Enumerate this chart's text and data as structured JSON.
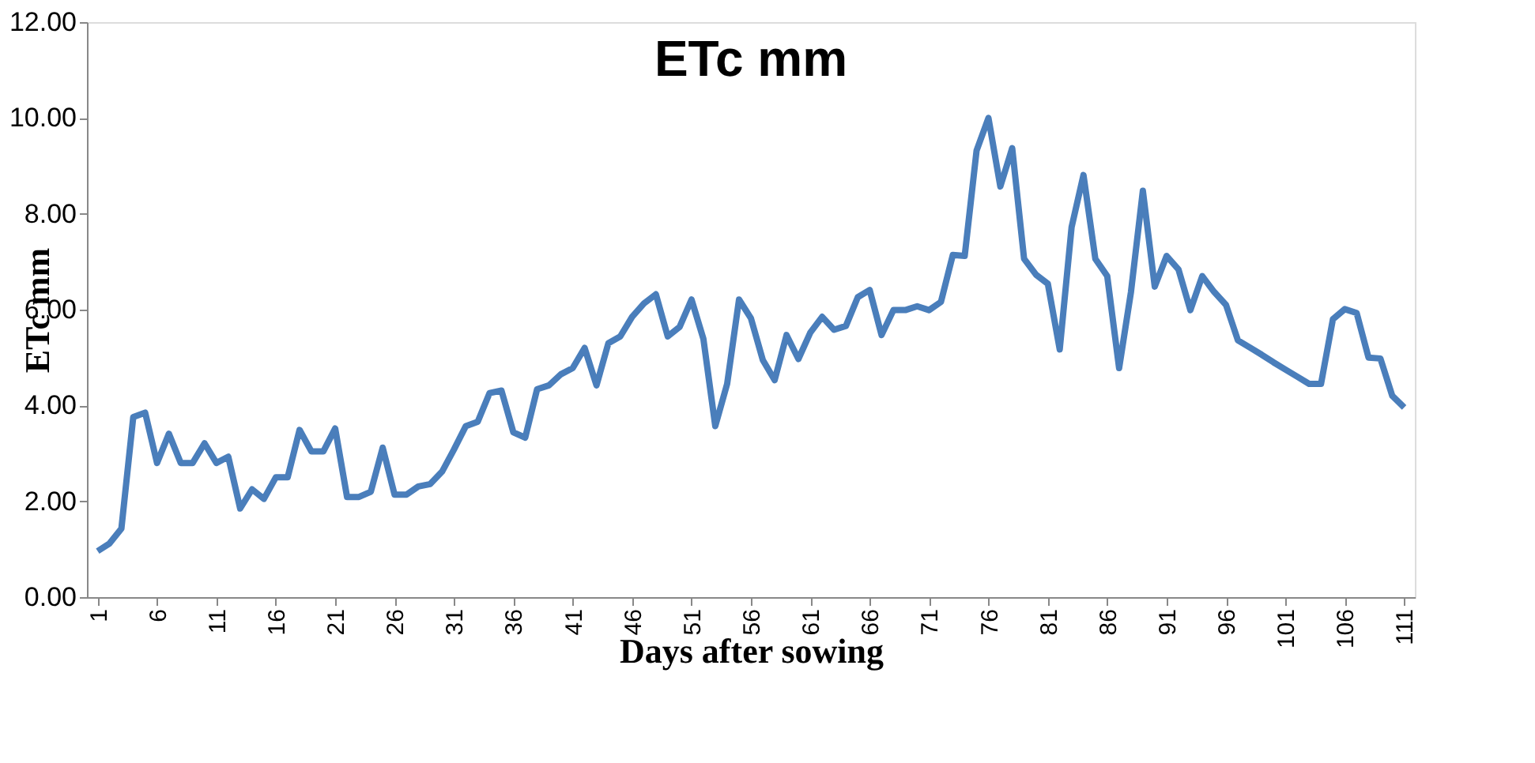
{
  "chart_data": {
    "type": "line",
    "title": "ETc mm",
    "xlabel": "Days after sowing",
    "ylabel": "ETc mm",
    "x": [
      1,
      2,
      3,
      4,
      5,
      6,
      7,
      8,
      9,
      10,
      11,
      12,
      13,
      14,
      15,
      16,
      17,
      18,
      19,
      20,
      21,
      22,
      23,
      24,
      25,
      26,
      27,
      28,
      29,
      30,
      31,
      32,
      33,
      34,
      35,
      36,
      37,
      38,
      39,
      40,
      41,
      42,
      43,
      44,
      45,
      46,
      47,
      48,
      49,
      50,
      51,
      52,
      53,
      54,
      55,
      56,
      57,
      58,
      59,
      60,
      61,
      62,
      63,
      64,
      65,
      66,
      67,
      68,
      69,
      70,
      71,
      72,
      73,
      74,
      75,
      76,
      77,
      78,
      79,
      80,
      81,
      82,
      83,
      84,
      85,
      86,
      87,
      88,
      89,
      90,
      91,
      92,
      93,
      94,
      95,
      96,
      97,
      98,
      99,
      100,
      101,
      102,
      103,
      104,
      105,
      106,
      107,
      108,
      109,
      110,
      111
    ],
    "series": [
      {
        "color": "#4a7ebb",
        "values": [
          0.96,
          1.12,
          1.43,
          3.76,
          3.85,
          2.8,
          3.41,
          2.8,
          2.8,
          3.21,
          2.8,
          2.93,
          1.85,
          2.25,
          2.05,
          2.5,
          2.5,
          3.49,
          3.04,
          3.04,
          3.52,
          2.09,
          2.09,
          2.2,
          3.12,
          2.14,
          2.14,
          2.31,
          2.36,
          2.62,
          3.08,
          3.57,
          3.66,
          4.26,
          4.31,
          3.44,
          3.33,
          4.34,
          4.42,
          4.65,
          4.78,
          5.2,
          4.42,
          5.3,
          5.44,
          5.85,
          6.13,
          6.32,
          5.44,
          5.64,
          6.21,
          5.39,
          3.57,
          4.45,
          6.21,
          5.82,
          4.95,
          4.53,
          5.47,
          4.97,
          5.52,
          5.85,
          5.58,
          5.66,
          6.26,
          6.41,
          5.47,
          5.99,
          5.99,
          6.07,
          5.99,
          6.16,
          7.14,
          7.12,
          9.32,
          10.0,
          8.57,
          9.37,
          7.06,
          6.73,
          6.54,
          5.17,
          7.72,
          8.81,
          7.06,
          6.7,
          4.78,
          6.37,
          8.48,
          6.48,
          7.12,
          6.84,
          5.99,
          6.7,
          6.37,
          6.1,
          5.36,
          5.21,
          5.06,
          4.9,
          4.75,
          4.6,
          4.45,
          4.45,
          5.8,
          6.01,
          5.93,
          5.0,
          4.98,
          4.2,
          3.96
        ]
      }
    ],
    "xlim": [
      0.1,
      111.9
    ],
    "xticks": [
      1,
      6,
      11,
      16,
      21,
      26,
      31,
      36,
      41,
      46,
      51,
      56,
      61,
      66,
      71,
      76,
      81,
      86,
      91,
      96,
      101,
      106,
      111
    ],
    "ylim": [
      0,
      12
    ],
    "yticks": [
      {
        "value": 0,
        "label": "0.00"
      },
      {
        "value": 2,
        "label": "2.00"
      },
      {
        "value": 4,
        "label": "4.00"
      },
      {
        "value": 6,
        "label": "6.00"
      },
      {
        "value": 8,
        "label": "8.00"
      },
      {
        "value": 10,
        "label": "10.00"
      },
      {
        "value": 12,
        "label": "12.00"
      }
    ],
    "grid": false,
    "legend": false,
    "marker": "none",
    "line_style": "solid"
  }
}
